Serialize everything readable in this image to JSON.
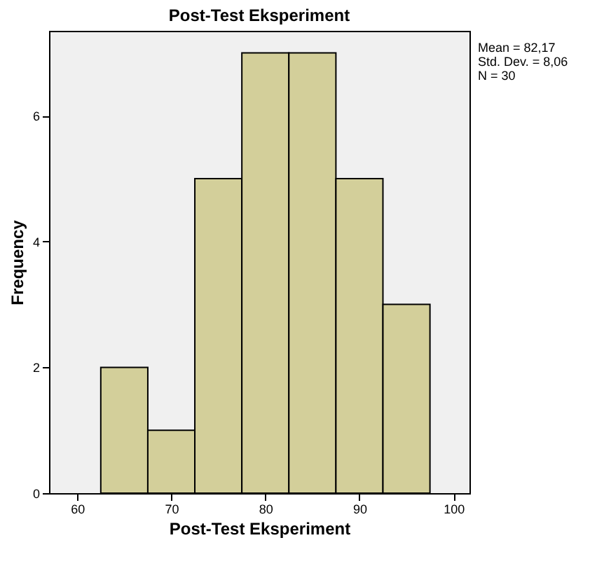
{
  "chart_data": {
    "type": "histogram",
    "title": "Post-Test Eksperiment",
    "xlabel": "Post-Test Eksperiment",
    "ylabel": "Frequency",
    "bins": [
      62.5,
      67.5,
      72.5,
      77.5,
      82.5,
      87.5,
      92.5,
      97.5
    ],
    "values": [
      2,
      1,
      5,
      7,
      7,
      5,
      3
    ],
    "color": "#d3cf9a",
    "xlim": [
      57,
      101.7
    ],
    "xticks": [
      60,
      70,
      80,
      90,
      100
    ],
    "ylim": [
      0,
      7.35
    ],
    "yticks": [
      0,
      2,
      4,
      6
    ],
    "grid": false,
    "annotations": [
      "Mean = 82,17",
      "Std. Dev. = 8,06",
      "N = 30"
    ]
  }
}
